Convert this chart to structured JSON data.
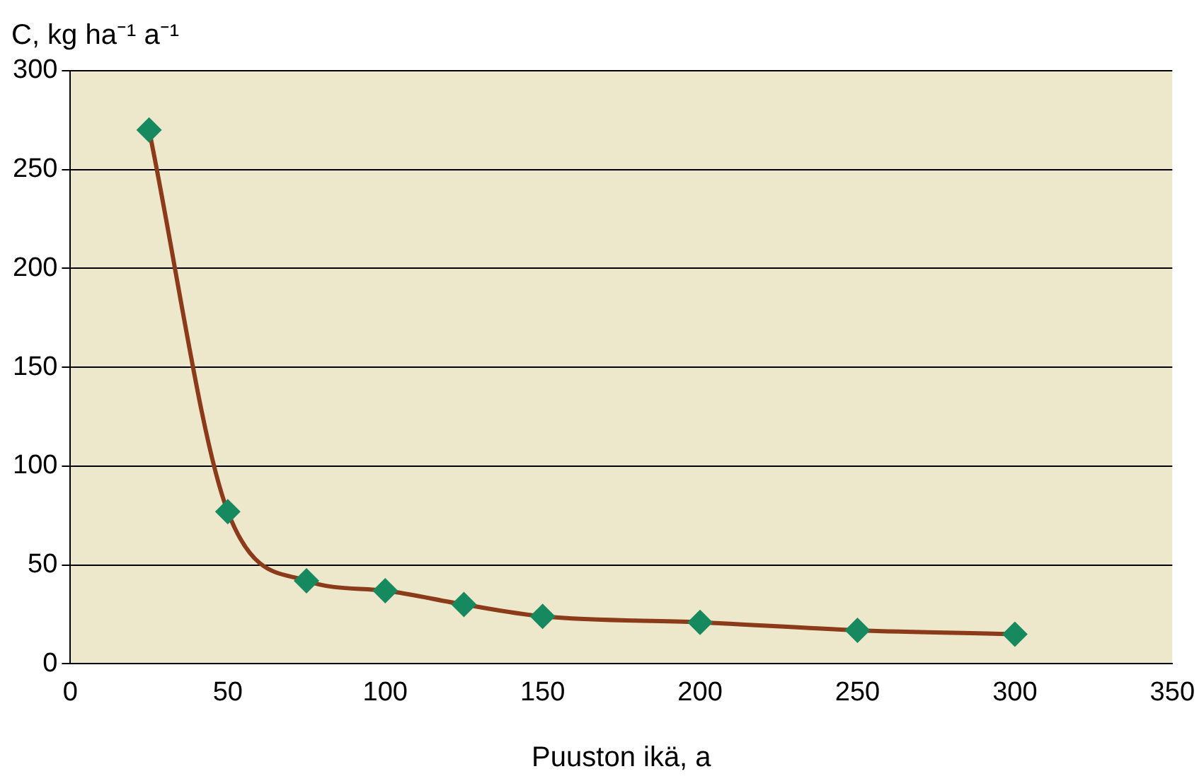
{
  "chart_data": {
    "type": "line",
    "ylabel": "C, kg ha⁻¹ a⁻¹",
    "xlabel": "Puuston ikä, a",
    "x": [
      25,
      50,
      75,
      100,
      125,
      150,
      200,
      250,
      300
    ],
    "series": [
      {
        "color": "#8b3a1a",
        "values": [
          270,
          77,
          42,
          37,
          30,
          24,
          21,
          17,
          15
        ]
      }
    ],
    "marker": "diamond",
    "xlim": [
      0,
      350
    ],
    "xticks": [
      0,
      50,
      100,
      150,
      200,
      250,
      300,
      350
    ],
    "ylim": [
      0,
      300
    ],
    "yticks": [
      0,
      50,
      100,
      150,
      200,
      250,
      300
    ],
    "grid": "y",
    "legend": false
  }
}
